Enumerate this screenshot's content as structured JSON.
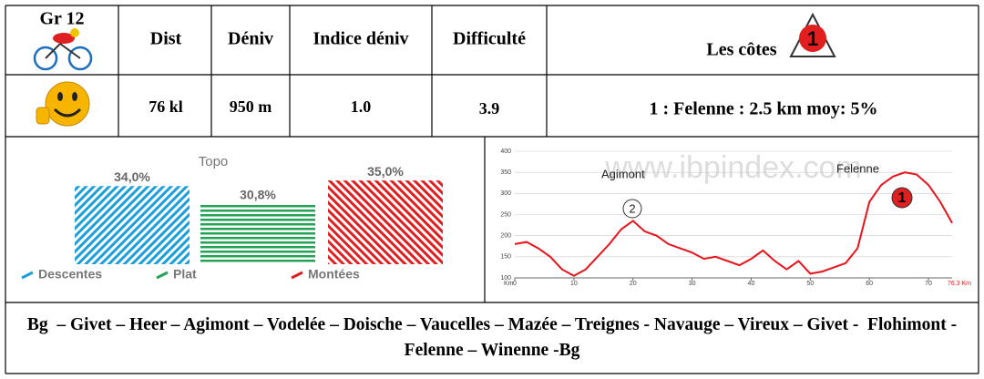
{
  "table": {
    "header": [
      "Gr 12",
      "Dist",
      "Déniv",
      "Indice déniv",
      "Difficulté",
      "Les côtes"
    ],
    "badge": "1",
    "row": [
      "76 kl",
      "950 m",
      "1.0",
      "3.9",
      "1 : Felenne : 2.5 km moy: 5%"
    ],
    "route": "Bg  – Givet – Heer – Agimont – Vodelée – Doische – Vaucelles – Mazée – Treignes - Navauge – Vireux – Givet -  Flohimont - Felenne – Winenne -Bg"
  },
  "chart_data": [
    {
      "type": "bar",
      "title": "Topo",
      "categories": [
        "Descentes",
        "Plat",
        "Montées"
      ],
      "values": [
        34.0,
        30.8,
        35.0
      ],
      "value_labels": [
        "34,0%",
        "30,8%",
        "35,0%"
      ],
      "colors": [
        "#1a9fd8",
        "#22a355",
        "#e02020"
      ],
      "ylim": [
        20,
        36
      ]
    },
    {
      "type": "line",
      "watermark": "www.ibpindex.com",
      "annotations": [
        "Agimont",
        "Felenne",
        "2",
        "1"
      ],
      "end_label": "76.3 Km",
      "xlabel": "Km",
      "x": [
        0,
        2,
        4,
        6,
        8,
        10,
        12,
        14,
        16,
        18,
        20,
        22,
        24,
        26,
        28,
        30,
        32,
        34,
        36,
        38,
        40,
        42,
        44,
        46,
        48,
        50,
        52,
        54,
        56,
        58,
        60,
        62,
        64,
        66,
        68,
        70,
        72,
        74
      ],
      "values": [
        180,
        185,
        170,
        150,
        120,
        105,
        120,
        150,
        180,
        215,
        235,
        210,
        200,
        180,
        170,
        160,
        145,
        150,
        140,
        130,
        145,
        165,
        140,
        120,
        140,
        110,
        115,
        125,
        135,
        170,
        280,
        320,
        340,
        350,
        345,
        320,
        280,
        230
      ],
      "color": "#e8141c",
      "xlim": [
        0,
        74
      ],
      "ylim": [
        100,
        400
      ],
      "xticks": [
        0,
        10,
        20,
        30,
        40,
        50,
        60,
        70
      ],
      "yticks": [
        100,
        150,
        200,
        250,
        300,
        350,
        400
      ],
      "grid": true
    }
  ]
}
